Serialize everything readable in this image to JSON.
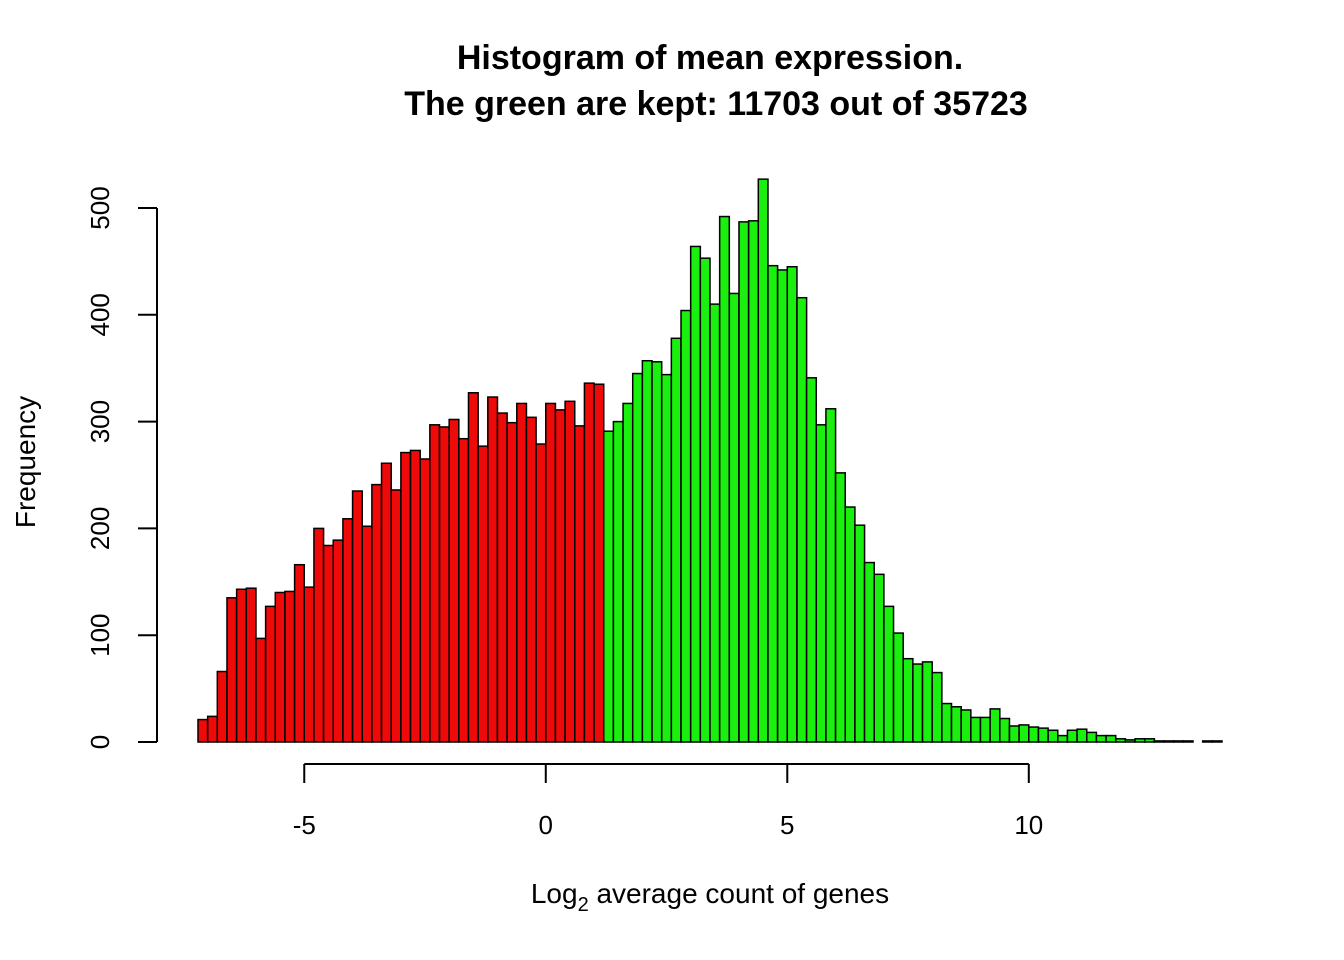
{
  "chart_data": {
    "type": "bar",
    "title_line1": "Histogram of mean expression.",
    "title_line2": "The green are kept: 11703 out of 35723",
    "xlabel_prefix": "Log",
    "xlabel_sub": "2",
    "xlabel_suffix": " average count of genes",
    "ylabel": "Frequency",
    "bin_start": -7.2,
    "bin_width": 0.2,
    "threshold": 1.2,
    "xlim": [
      -7.2,
      14.0
    ],
    "ylim": [
      0,
      530
    ],
    "x_ticks": [
      -5,
      0,
      5,
      10
    ],
    "x_tick_labels": [
      "-5",
      "0",
      "5",
      "10"
    ],
    "y_ticks": [
      0,
      100,
      200,
      300,
      400,
      500
    ],
    "y_tick_labels": [
      "0",
      "100",
      "200",
      "300",
      "400",
      "500"
    ],
    "kept_color": "#1aef0f",
    "removed_color": "#ef0a0a",
    "values": [
      21,
      24,
      66,
      135,
      143,
      144,
      97,
      127,
      140,
      141,
      166,
      145,
      200,
      184,
      189,
      209,
      235,
      202,
      241,
      261,
      236,
      271,
      273,
      265,
      297,
      295,
      302,
      284,
      327,
      277,
      323,
      308,
      299,
      317,
      304,
      279,
      317,
      311,
      319,
      296,
      336,
      335,
      291,
      300,
      317,
      345,
      357,
      356,
      344,
      378,
      404,
      464,
      453,
      410,
      492,
      420,
      487,
      488,
      527,
      446,
      442,
      445,
      416,
      341,
      297,
      312,
      252,
      220,
      203,
      168,
      157,
      127,
      102,
      78,
      73,
      75,
      65,
      36,
      33,
      30,
      23,
      23,
      31,
      22,
      15,
      16,
      14,
      13,
      11,
      6,
      11,
      12,
      9,
      6,
      6,
      3,
      2,
      3,
      3,
      1,
      1,
      1,
      1,
      0,
      1,
      1
    ]
  }
}
